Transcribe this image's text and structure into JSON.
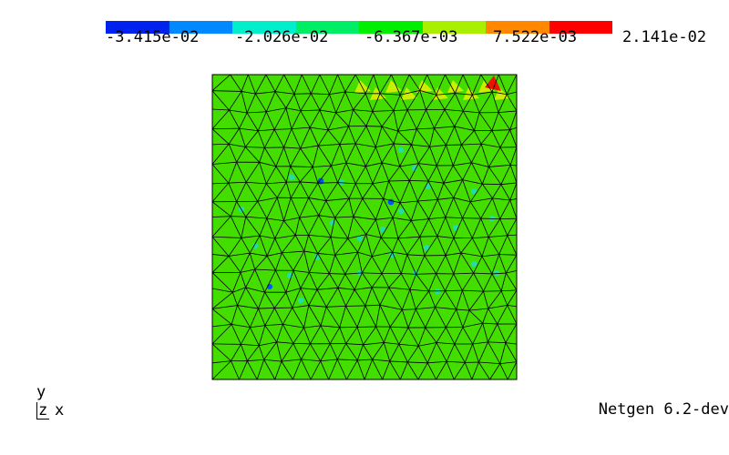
{
  "colorbar": {
    "colors": [
      "#0022ee",
      "#0088ff",
      "#00eecc",
      "#00ee66",
      "#00ee00",
      "#aaee00",
      "#ff8800",
      "#ff0000"
    ],
    "labels": [
      "-3.415e-02",
      "-2.026e-02",
      "-6.367e-03",
      "7.522e-03",
      "2.141e-02"
    ]
  },
  "mesh": {
    "base_color": "#44dd00",
    "edge_color": "#000000",
    "hotspot_color": "#ee1100",
    "yellow_color": "#ccee00",
    "cyan_color": "#22ddaa",
    "blue_color": "#0055ff"
  },
  "axes": {
    "y": "y",
    "z": "z",
    "x": "x"
  },
  "footer": {
    "version": "Netgen 6.2-dev"
  }
}
